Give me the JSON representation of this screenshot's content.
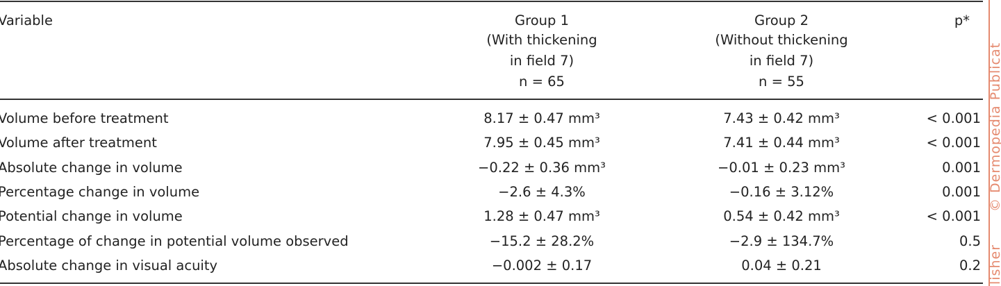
{
  "table": {
    "header": [
      [
        "Variable"
      ],
      [
        "Group 1",
        "(With thickening",
        "in field 7)",
        "n = 65"
      ],
      [
        "Group 2",
        "(Without thickening",
        "in field 7)",
        "n = 55"
      ],
      [
        "p*"
      ]
    ],
    "rows": [
      [
        "Volume before treatment",
        "8.17 ± 0.47 mm³",
        "7.43 ± 0.42 mm³",
        "< 0.001"
      ],
      [
        "Volume after treatment",
        "7.95 ± 0.45 mm³",
        "7.41 ± 0.44 mm³",
        "< 0.001"
      ],
      [
        "Absolute change in volume",
        "−0.22 ± 0.36 mm³",
        "−0.01 ± 0.23 mm³",
        "0.001"
      ],
      [
        "Percentage change in volume",
        "−2.6 ± 4.3%",
        "−0.16 ± 3.12%",
        "0.001"
      ],
      [
        "Potential change in volume",
        "1.28 ± 0.47 mm³",
        "0.54 ± 0.42 mm³",
        "< 0.001"
      ],
      [
        "Percentage of change in potential volume observed",
        "−15.2 ± 28.2%",
        "−2.9 ± 134.7%",
        "0.5"
      ],
      [
        "Absolute change in visual acuity",
        "−0.002 ± 0.17",
        "0.04 ± 0.21",
        "0.2"
      ]
    ]
  },
  "watermark": [
    "lisher",
    "© Dermopedia Publicat"
  ]
}
